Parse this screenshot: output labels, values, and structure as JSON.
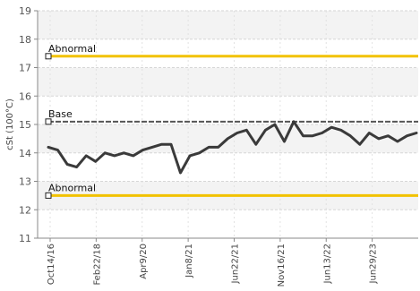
{
  "chart_data": {
    "type": "line",
    "ylabel": "cSt (100°C)",
    "ylim": [
      11,
      19
    ],
    "yticks": [
      11,
      12,
      13,
      14,
      15,
      16,
      17,
      18,
      19
    ],
    "grid": true,
    "x_tick_labels": [
      "Oct14/16",
      "Feb22/18",
      "Apr9/20",
      "Jan8/21",
      "Jun22/21",
      "Nov16/21",
      "Jun13/22",
      "Jun29/23"
    ],
    "reference_lines": [
      {
        "label": "Abnormal",
        "value": 17.4,
        "color": "#f2c200"
      },
      {
        "label": "Base",
        "value": 15.1,
        "color": "#555555"
      },
      {
        "label": "Abnormal",
        "value": 12.5,
        "color": "#f2c200"
      }
    ],
    "series": [
      {
        "color": "#3a3a3a",
        "values": [
          14.2,
          14.1,
          13.6,
          13.5,
          13.9,
          13.7,
          14.0,
          13.9,
          14.0,
          13.9,
          14.1,
          14.2,
          14.3,
          14.3,
          13.3,
          13.9,
          14.0,
          14.2,
          14.2,
          14.5,
          14.7,
          14.8,
          14.3,
          14.8,
          15.0,
          14.4,
          15.1,
          14.6,
          14.6,
          14.7,
          14.9,
          14.8,
          14.6,
          14.3,
          14.7,
          14.5,
          14.6,
          14.4,
          14.6,
          14.7
        ]
      }
    ]
  }
}
